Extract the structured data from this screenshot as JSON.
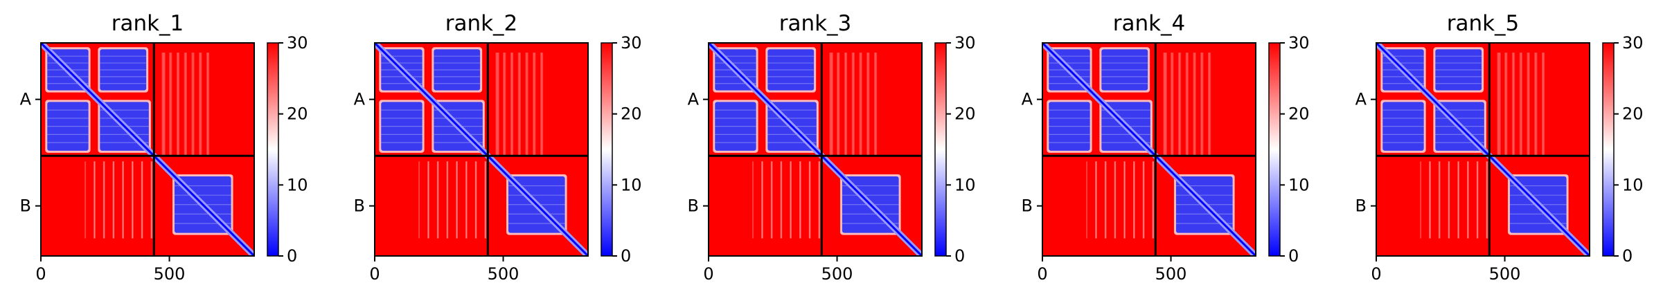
{
  "chart_data": {
    "type": "heatmap",
    "colorbar": {
      "min": 0,
      "max": 30,
      "ticks": [
        0,
        10,
        20,
        30
      ],
      "colormap": "bwr",
      "low_color": "#0000ff",
      "mid_color": "#ffffff",
      "high_color": "#ff0000"
    },
    "x_range": [
      0,
      830
    ],
    "x_ticks": [
      0,
      500
    ],
    "chain_boundary": 440,
    "chains": [
      "A",
      "B"
    ],
    "chain_ranges": {
      "A": [
        0,
        440
      ],
      "B": [
        440,
        830
      ]
    },
    "low_blocks": [
      {
        "rows": [
          25,
          185
        ],
        "cols": [
          25,
          185
        ]
      },
      {
        "rows": [
          25,
          185
        ],
        "cols": [
          230,
          410
        ]
      },
      {
        "rows": [
          230,
          420
        ],
        "cols": [
          25,
          185
        ]
      },
      {
        "rows": [
          230,
          420
        ],
        "cols": [
          230,
          420
        ]
      },
      {
        "rows": [
          520,
          740
        ],
        "cols": [
          520,
          740
        ]
      }
    ],
    "panels": [
      {
        "title": "rank_1"
      },
      {
        "title": "rank_2"
      },
      {
        "title": "rank_3"
      },
      {
        "title": "rank_4"
      },
      {
        "title": "rank_5"
      }
    ]
  }
}
